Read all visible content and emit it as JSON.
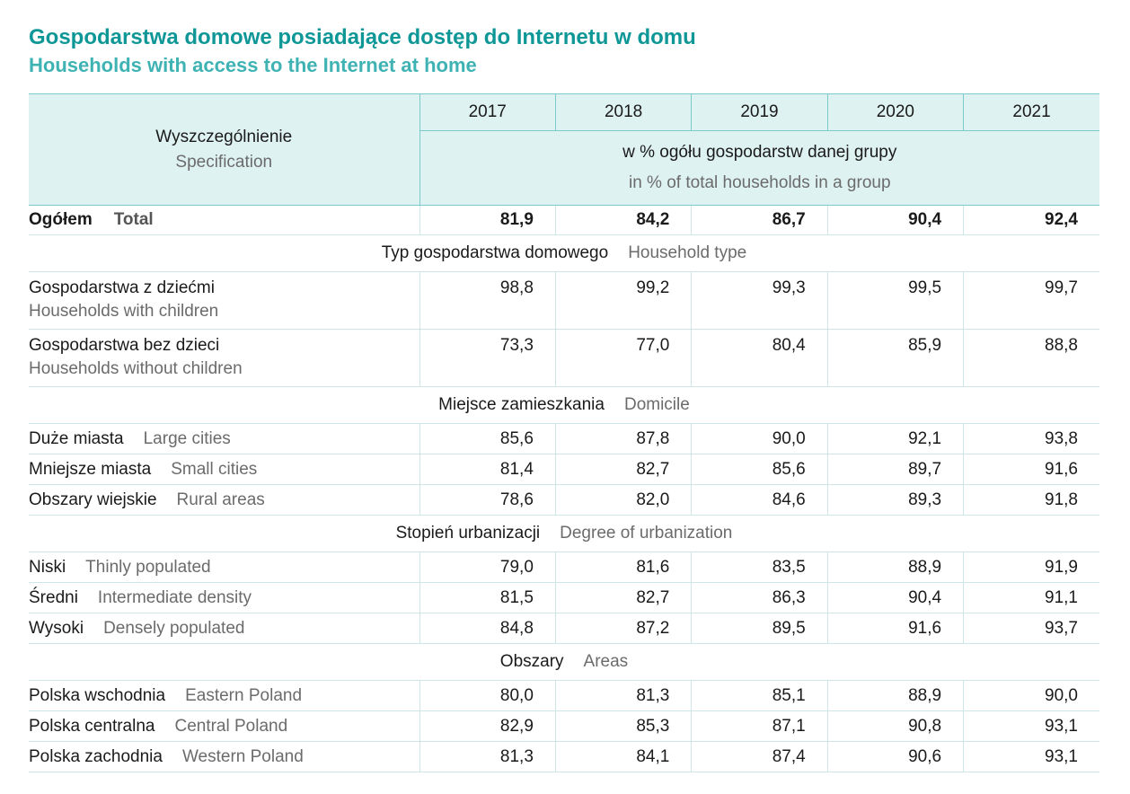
{
  "title": {
    "pl": "Gospodarstwa domowe posiadające dostęp do Internetu w domu",
    "en": "Households with access to the Internet at home"
  },
  "header": {
    "spec_pl": "Wyszczególnienie",
    "spec_en": "Specification",
    "years": [
      "2017",
      "2018",
      "2019",
      "2020",
      "2021"
    ],
    "unit_pl": "w % ogółu gospodarstw danej grupy",
    "unit_en": "in % of total households in a group"
  },
  "total": {
    "label_pl": "Ogółem",
    "label_en": "Total",
    "values": [
      "81,9",
      "84,2",
      "86,7",
      "90,4",
      "92,4"
    ]
  },
  "sections": [
    {
      "title_pl": "Typ gospodarstwa domowego",
      "title_en": "Household type",
      "rows": [
        {
          "label_pl": "Gospodarstwa z dziećmi",
          "label_en": "Households with children",
          "values": [
            "98,8",
            "99,2",
            "99,3",
            "99,5",
            "99,7"
          ]
        },
        {
          "label_pl": "Gospodarstwa bez dzieci",
          "label_en": "Households without children",
          "values": [
            "73,3",
            "77,0",
            "80,4",
            "85,9",
            "88,8"
          ]
        }
      ]
    },
    {
      "title_pl": "Miejsce zamieszkania",
      "title_en": "Domicile",
      "rows": [
        {
          "label_pl": "Duże miasta",
          "label_en": "Large cities",
          "values": [
            "85,6",
            "87,8",
            "90,0",
            "92,1",
            "93,8"
          ]
        },
        {
          "label_pl": "Mniejsze miasta",
          "label_en": "Small cities",
          "values": [
            "81,4",
            "82,7",
            "85,6",
            "89,7",
            "91,6"
          ]
        },
        {
          "label_pl": "Obszary wiejskie",
          "label_en": "Rural areas",
          "values": [
            "78,6",
            "82,0",
            "84,6",
            "89,3",
            "91,8"
          ]
        }
      ]
    },
    {
      "title_pl": "Stopień urbanizacji",
      "title_en": "Degree of urbanization",
      "rows": [
        {
          "label_pl": "Niski",
          "label_en": "Thinly populated",
          "values": [
            "79,0",
            "81,6",
            "83,5",
            "88,9",
            "91,9"
          ]
        },
        {
          "label_pl": "Średni",
          "label_en": "Intermediate density",
          "values": [
            "81,5",
            "82,7",
            "86,3",
            "90,4",
            "91,1"
          ]
        },
        {
          "label_pl": "Wysoki",
          "label_en": "Densely populated",
          "values": [
            "84,8",
            "87,2",
            "89,5",
            "91,6",
            "93,7"
          ]
        }
      ]
    },
    {
      "title_pl": "Obszary",
      "title_en": "Areas",
      "rows": [
        {
          "label_pl": "Polska wschodnia",
          "label_en": "Eastern Poland",
          "values": [
            "80,0",
            "81,3",
            "85,1",
            "88,9",
            "90,0"
          ]
        },
        {
          "label_pl": "Polska centralna",
          "label_en": "Central Poland",
          "values": [
            "82,9",
            "85,3",
            "87,1",
            "90,8",
            "93,1"
          ]
        },
        {
          "label_pl": "Polska zachodnia",
          "label_en": "Western Poland",
          "values": [
            "81,3",
            "84,1",
            "87,4",
            "90,6",
            "93,1"
          ]
        }
      ]
    }
  ]
}
